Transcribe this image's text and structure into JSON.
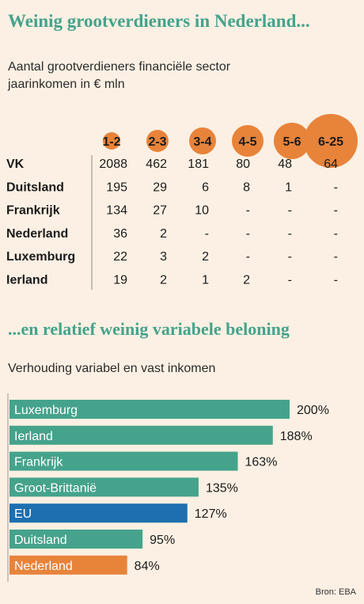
{
  "header": {
    "title": "Weinig grootverdieners in Nederland...",
    "subtitle_line1": "Aantal grootverdieners financiële sector",
    "subtitle_line2": "jaarinkomen in € mln"
  },
  "section2": {
    "title": "...en relatief weinig variabele beloning",
    "subtitle": "Verhouding variabel en vast inkomen"
  },
  "source": "Bron: EBA",
  "colors": {
    "title": "#45a38c",
    "bubble": "#e8833a",
    "bar_default": "#45a38c",
    "bar_eu": "#1d6fb0",
    "bar_nederland": "#e8833a",
    "background": "#fbf0e3"
  },
  "chart_data": [
    {
      "type": "table",
      "title": "Aantal grootverdieners financiële sector",
      "subtitle": "jaarinkomen in € mln",
      "columns": [
        "1-2",
        "2-3",
        "3-4",
        "4-5",
        "5-6",
        "6-25"
      ],
      "rows": [
        {
          "country": "VK",
          "values": [
            "2088",
            "462",
            "181",
            "80",
            "48",
            "64"
          ]
        },
        {
          "country": "Duitsland",
          "values": [
            "195",
            "29",
            "6",
            "8",
            "1",
            "-"
          ]
        },
        {
          "country": "Frankrijk",
          "values": [
            "134",
            "27",
            "10",
            "-",
            "-",
            "-"
          ]
        },
        {
          "country": "Nederland",
          "values": [
            "36",
            "2",
            "-",
            "-",
            "-",
            "-"
          ]
        },
        {
          "country": "Luxemburg",
          "values": [
            "22",
            "3",
            "2",
            "-",
            "-",
            "-"
          ]
        },
        {
          "country": "Ierland",
          "values": [
            "19",
            "2",
            "1",
            "2",
            "-",
            "-"
          ]
        }
      ]
    },
    {
      "type": "bar",
      "orientation": "horizontal",
      "title": "...en relatief weinig variabele beloning",
      "subtitle": "Verhouding variabel en vast inkomen",
      "unit": "%",
      "xlim": [
        0,
        200
      ],
      "categories": [
        "Luxemburg",
        "Ierland",
        "Frankrijk",
        "Groot-Brittanië",
        "EU",
        "Duitsland",
        "Nederland"
      ],
      "values": [
        200,
        188,
        163,
        135,
        127,
        95,
        84
      ],
      "value_labels": [
        "200%",
        "188%",
        "163%",
        "135%",
        "127%",
        "95%",
        "84%"
      ],
      "highlight": {
        "EU": "#1d6fb0",
        "Nederland": "#e8833a"
      }
    }
  ]
}
